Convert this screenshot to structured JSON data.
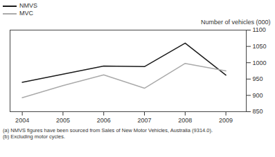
{
  "chart_data": {
    "type": "line",
    "ylabel": "Number of vehicles (000)",
    "x": [
      2004,
      2005,
      2006,
      2007,
      2008,
      2009
    ],
    "series": [
      {
        "name": "NMVS",
        "color": "#1a1a1a",
        "values": [
          940,
          965,
          990,
          988,
          1060,
          962
        ]
      },
      {
        "name": "MVC",
        "color": "#aaaaaa",
        "values": [
          893,
          930,
          963,
          922,
          998,
          975
        ]
      }
    ],
    "xlim": [
      2003.7,
      2009.5
    ],
    "xticks": [
      2004,
      2005,
      2006,
      2007,
      2008,
      2009
    ],
    "ylim": [
      850,
      1100
    ],
    "yticks": [
      850,
      900,
      950,
      1000,
      1050,
      1100
    ],
    "annotations": [
      "(a) NMVS figures have been sourced from Sales of New Motor Vehicles, Australia (9314.0).",
      "(b) Excluding motor cycles."
    ],
    "legend": "upper left",
    "grid": false
  }
}
